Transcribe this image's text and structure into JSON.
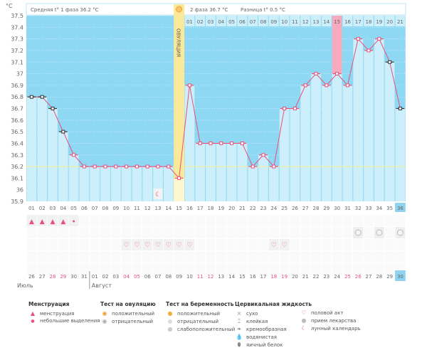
{
  "unit_label": "°C",
  "header": {
    "phase1_avg": "Средняя t° 1 фаза 36.2 °C",
    "phase2_avg": "2 фаза 36.7 °C",
    "difference": "Разница t° 0.5 °C",
    "ovulation_icon": "sun-icon"
  },
  "ovulation_label": "ОВУЛЯЦИЯ",
  "ovulation_day": 15,
  "colors": {
    "bg": "#8fd8f3",
    "bar": "#cdeefb",
    "line": "#e8507a",
    "ovulation": "#fbe99a",
    "highlight": "#f7a9bd",
    "avg_line": "#f3ef9a",
    "today": "#8fd3ef"
  },
  "chart_data": {
    "type": "line",
    "ylim": [
      35.9,
      37.5
    ],
    "yticks": [
      "37.5",
      "37.4",
      "37.3",
      "37.2",
      "37.1",
      "37",
      "36.9",
      "36.8",
      "36.7",
      "36.6",
      "36.5",
      "36.4",
      "36.3",
      "36.2",
      "36.1",
      "36",
      "35.9"
    ],
    "phase1_average": 36.2,
    "cycle_days": [
      "01",
      "02",
      "03",
      "04",
      "05",
      "06",
      "07",
      "08",
      "09",
      "10",
      "11",
      "12",
      "13",
      "14",
      "15",
      "16",
      "17",
      "18",
      "19",
      "20",
      "21",
      "22",
      "23",
      "24",
      "25",
      "26",
      "27",
      "28",
      "29",
      "30",
      "31",
      "32",
      "33",
      "34",
      "35",
      "36"
    ],
    "temperatures": [
      36.8,
      36.8,
      36.7,
      36.5,
      36.3,
      36.2,
      36.2,
      36.2,
      36.2,
      36.2,
      36.2,
      36.2,
      36.2,
      36.2,
      36.1,
      36.9,
      36.4,
      36.4,
      36.4,
      36.4,
      36.4,
      36.2,
      36.3,
      36.2,
      36.7,
      36.7,
      36.9,
      37.0,
      36.9,
      37.0,
      36.9,
      37.3,
      37.2,
      37.3,
      37.1,
      36.7
    ],
    "excluded_days": [
      1,
      2,
      3,
      4,
      35,
      36
    ],
    "phase2_days": [
      "01",
      "02",
      "03",
      "04",
      "05",
      "06",
      "07",
      "08",
      "09",
      "10",
      "11",
      "12",
      "13",
      "14",
      "15",
      "16",
      "17",
      "18",
      "19",
      "20",
      "21"
    ],
    "highlighted_phase2_day": "15",
    "current_day": "36"
  },
  "moon_day": 13,
  "menstruation": {
    "heavy": [
      1,
      2,
      3,
      4
    ],
    "light": [
      5
    ]
  },
  "pills": [
    32,
    34,
    36
  ],
  "intercourse": [
    10,
    11,
    12,
    13,
    14,
    15,
    16,
    24,
    25
  ],
  "dates": [
    "26",
    "27",
    "28",
    "29",
    "30",
    "31",
    "01",
    "02",
    "03",
    "04",
    "05",
    "06",
    "07",
    "08",
    "09",
    "10",
    "11",
    "12",
    "13",
    "14",
    "15",
    "16",
    "17",
    "18",
    "19",
    "20",
    "21",
    "22",
    "23",
    "24",
    "25",
    "26",
    "27",
    "28",
    "29",
    "30"
  ],
  "weekend_dates_index": [
    2,
    3,
    9,
    10,
    16,
    17,
    23,
    24,
    30,
    31
  ],
  "months": {
    "july": "Июль",
    "august": "Август"
  },
  "legend": {
    "menstruation": {
      "title": "Менструация",
      "items": [
        "менструация",
        "небольшие выделения"
      ]
    },
    "ovulation_test": {
      "title": "Тест на овуляцию",
      "items": [
        "положительный",
        "отрицательный"
      ]
    },
    "pregnancy_test": {
      "title": "Тест на беременность",
      "items": [
        "положительный",
        "отрицательный",
        "слабоположительный"
      ]
    },
    "cervical": {
      "title": "Цервикальная жидкость",
      "items": [
        "сухо",
        "клейкая",
        "кремообразная",
        "водянистая",
        "яичный белок"
      ]
    },
    "other": {
      "items": [
        "половой акт",
        "прием лекарства",
        "лунный календарь"
      ]
    }
  }
}
